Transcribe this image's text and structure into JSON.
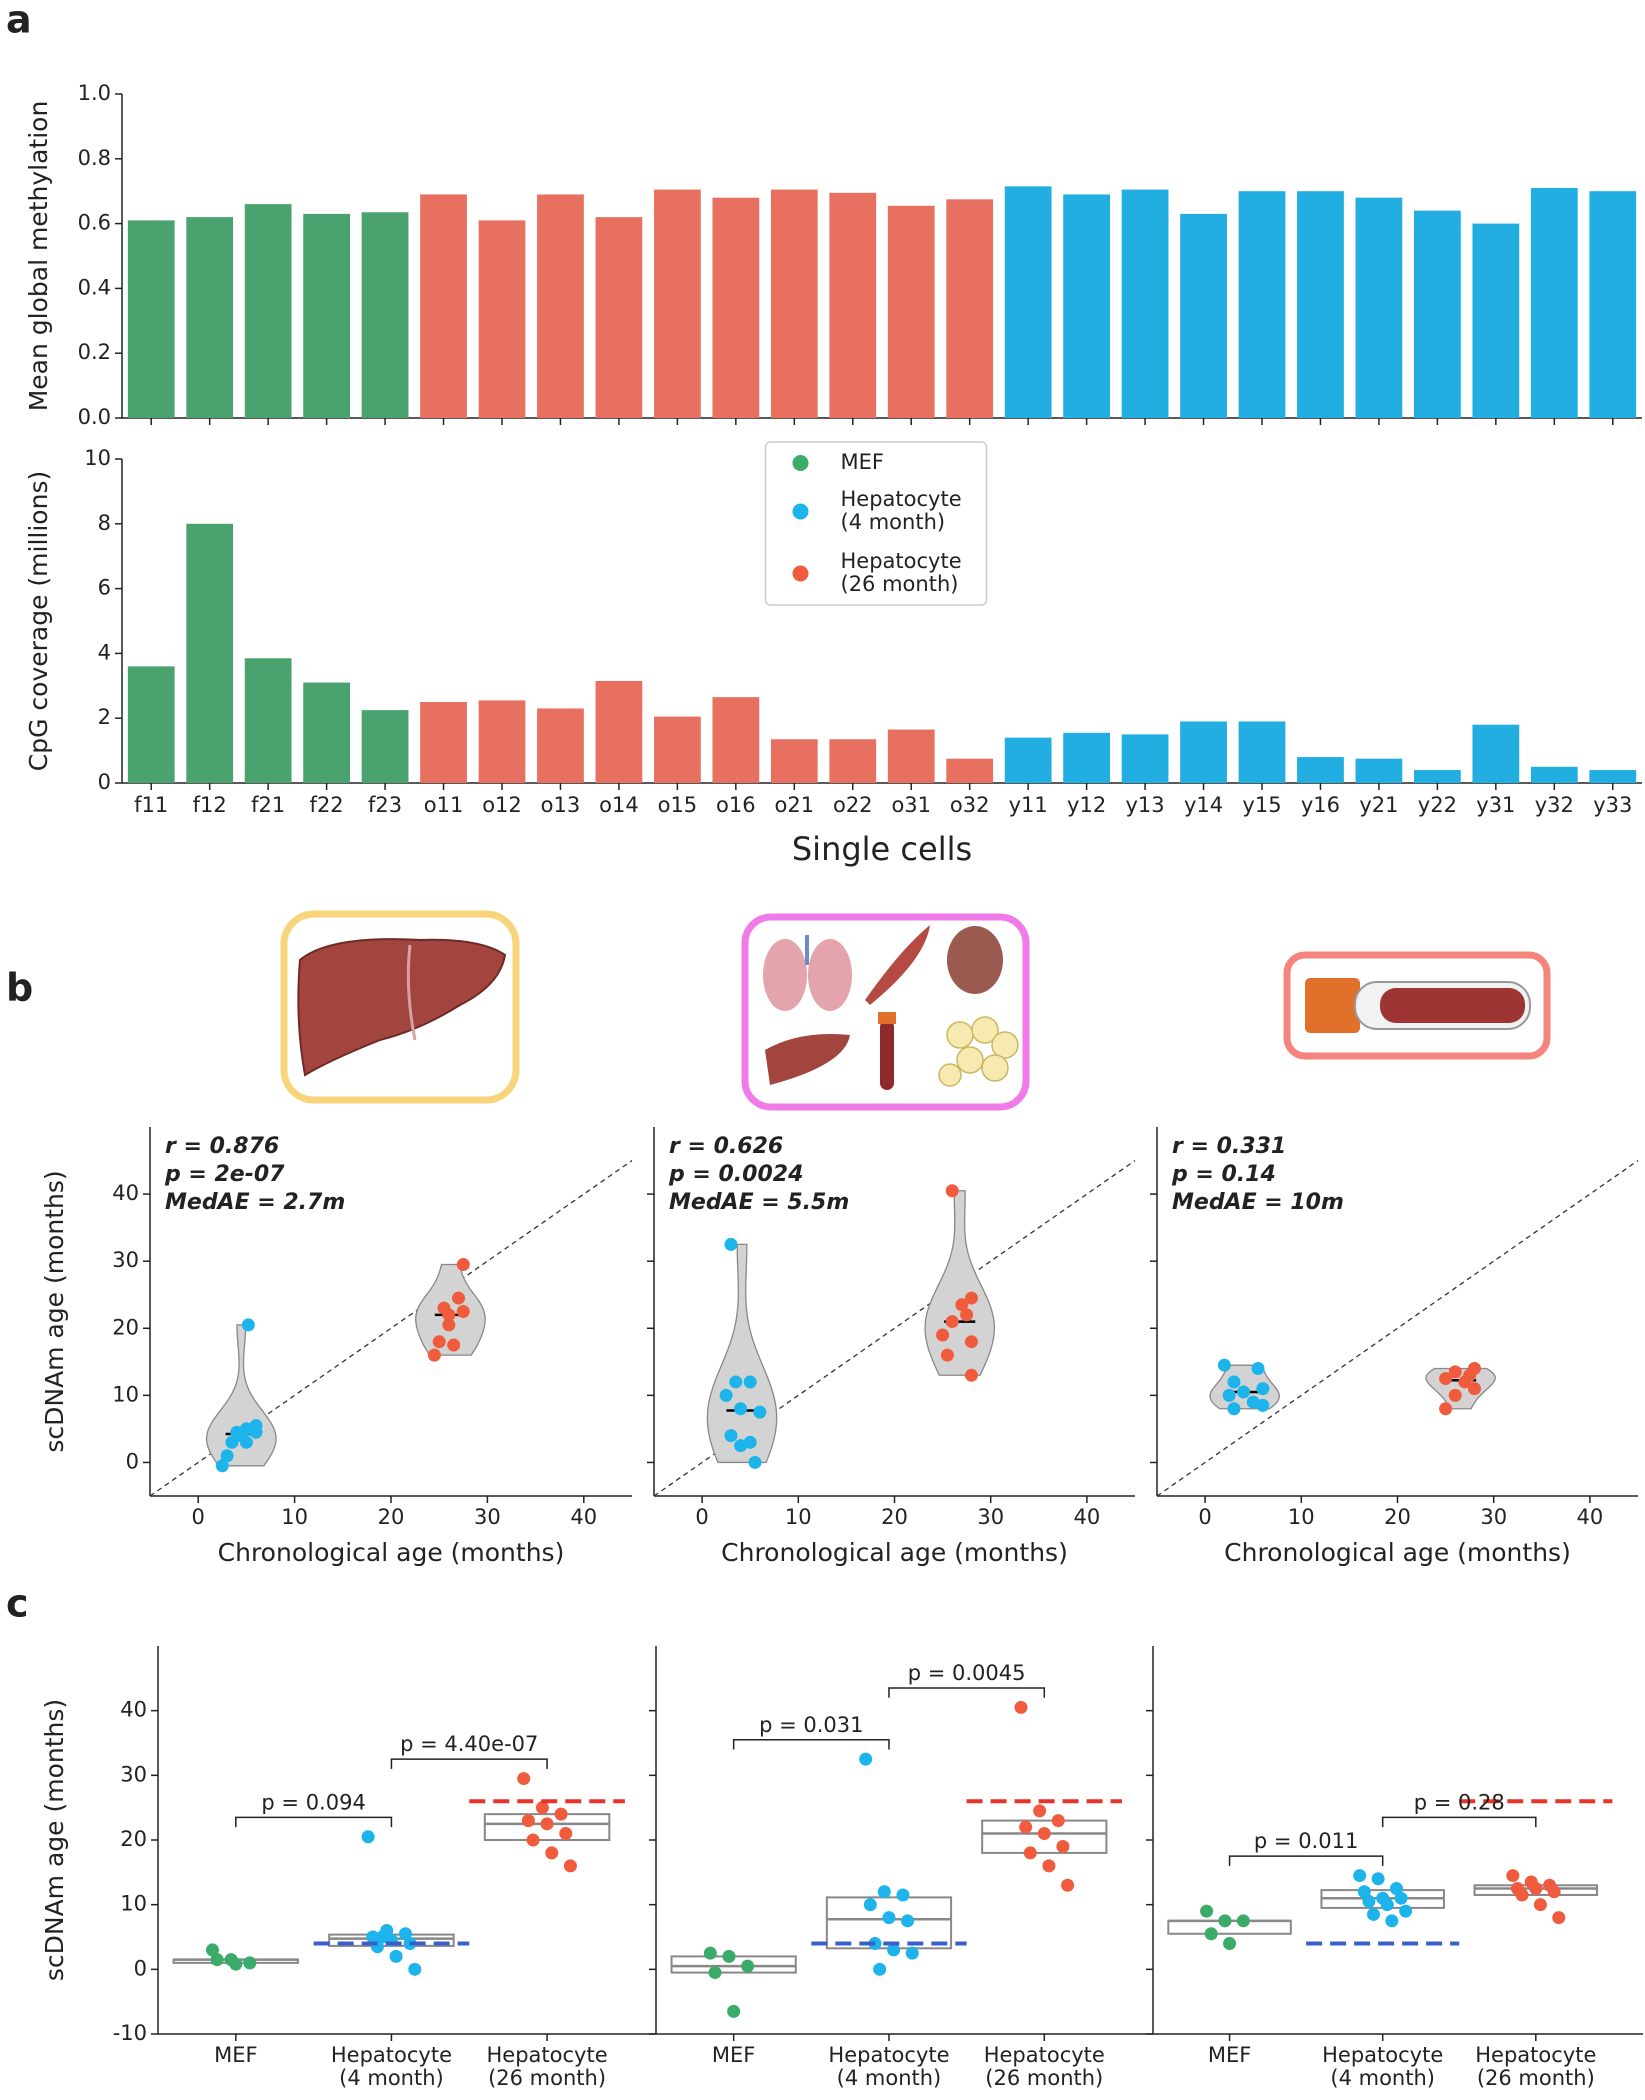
{
  "panel_labels": [
    "a",
    "b",
    "c"
  ],
  "chart_data": [
    {
      "type": "bar",
      "ylabel": "Mean global methylation",
      "values": [
        0.61,
        0.62,
        0.66,
        0.63,
        0.635,
        0.69,
        0.61,
        0.69,
        0.62,
        0.705,
        0.68,
        0.705,
        0.695,
        0.655,
        0.675,
        0.715,
        0.69,
        0.705,
        0.63,
        0.7,
        0.7,
        0.68,
        0.64,
        0.6,
        0.71,
        0.7
      ],
      "colors": [
        "#4aa36e",
        "#4aa36e",
        "#4aa36e",
        "#4aa36e",
        "#4aa36e",
        "#e87060",
        "#e87060",
        "#e87060",
        "#e87060",
        "#e87060",
        "#e87060",
        "#e87060",
        "#e87060",
        "#e87060",
        "#e87060",
        "#22aee0",
        "#22aee0",
        "#22aee0",
        "#22aee0",
        "#22aee0",
        "#22aee0",
        "#22aee0",
        "#22aee0",
        "#22aee0",
        "#22aee0",
        "#22aee0"
      ],
      "ylim": [
        0,
        1
      ],
      "yticks": [
        {
          "value": 0,
          "label": "0.0"
        },
        0.2,
        0.4,
        0.6,
        0.8,
        {
          "value": 1,
          "label": "1.0"
        }
      ]
    },
    {
      "type": "bar",
      "ylabel": "CpG coverage (millions)",
      "xlabel": "Single cells",
      "categories": [
        "f11",
        "f12",
        "f21",
        "f22",
        "f23",
        "o11",
        "o12",
        "o13",
        "o14",
        "o15",
        "o16",
        "o21",
        "o22",
        "o31",
        "o32",
        "y11",
        "y12",
        "y13",
        "y14",
        "y15",
        "y16",
        "y21",
        "y22",
        "y31",
        "y32",
        "y33"
      ],
      "values": [
        3.6,
        8.0,
        3.85,
        3.1,
        2.25,
        2.5,
        2.55,
        2.3,
        3.15,
        2.05,
        2.65,
        1.35,
        1.35,
        1.65,
        0.75,
        1.4,
        1.55,
        1.5,
        1.9,
        1.9,
        0.8,
        0.75,
        0.4,
        1.8,
        0.5,
        0.4
      ],
      "colors": [
        "#4aa36e",
        "#4aa36e",
        "#4aa36e",
        "#4aa36e",
        "#4aa36e",
        "#e87060",
        "#e87060",
        "#e87060",
        "#e87060",
        "#e87060",
        "#e87060",
        "#e87060",
        "#e87060",
        "#e87060",
        "#e87060",
        "#22aee0",
        "#22aee0",
        "#22aee0",
        "#22aee0",
        "#22aee0",
        "#22aee0",
        "#22aee0",
        "#22aee0",
        "#22aee0",
        "#22aee0",
        "#22aee0"
      ],
      "ylim": [
        0,
        10
      ],
      "yticks": [
        0,
        2,
        4,
        6,
        8,
        10
      ],
      "legend": {
        "location": "upper center",
        "entries": [
          {
            "name": "MEF",
            "color": "#3bab6a"
          },
          {
            "name": "Hepatocyte\n(4 month)",
            "color": "#1db4ec"
          },
          {
            "name": "Hepatocyte\n(26 month)",
            "color": "#f15b3d"
          }
        ]
      }
    },
    {
      "type": "violin",
      "ylabel": "scDNAm age (months)",
      "xlabel": "Chronological age (months)",
      "annotations": [
        "r = 0.876",
        "p = 2e-07",
        "MedAE = 2.7m"
      ],
      "identity_line": true,
      "xlim": [
        -5,
        45
      ],
      "xticks": [
        0,
        10,
        20,
        30,
        40
      ],
      "ylim": [
        -5,
        50
      ],
      "yticks": [
        0,
        10,
        20,
        30,
        40
      ],
      "series": [
        {
          "color": "#1db4ec",
          "x": [
            5.2,
            4,
            5,
            6,
            3.5,
            3,
            2.5,
            4.5,
            6,
            5
          ],
          "y": [
            20.5,
            4.5,
            5,
            5.5,
            3,
            1,
            -0.5,
            4,
            4.5,
            3
          ]
        },
        {
          "color": "#f15b3d",
          "x": [
            27.5,
            27,
            26,
            25.5,
            27.5,
            26,
            25,
            26.5,
            24.5
          ],
          "y": [
            29.5,
            24.5,
            22,
            23,
            22.5,
            20.5,
            18,
            17.5,
            16
          ]
        }
      ]
    },
    {
      "type": "violin",
      "xlabel": "Chronological age (months)",
      "sharey": true,
      "annotations": [
        "r = 0.626",
        "p = 0.0024",
        "MedAE = 5.5m"
      ],
      "identity_line": true,
      "xlim": [
        -5,
        45
      ],
      "xticks": [
        0,
        10,
        20,
        30,
        40
      ],
      "ylim": [
        -5,
        50
      ],
      "yticks": [
        0,
        10,
        20,
        30,
        40
      ],
      "series": [
        {
          "color": "#1db4ec",
          "x": [
            3,
            3.5,
            5,
            2.5,
            4,
            6,
            3,
            5,
            4,
            5.5
          ],
          "y": [
            32.5,
            12,
            12,
            10,
            8,
            7.5,
            4,
            3,
            2.5,
            0
          ]
        },
        {
          "color": "#f15b3d",
          "x": [
            26,
            28,
            27,
            27.5,
            26,
            25,
            28,
            25.5,
            28
          ],
          "y": [
            40.5,
            24.5,
            23.5,
            22,
            21,
            19,
            18,
            16,
            13
          ]
        }
      ]
    },
    {
      "type": "violin",
      "xlabel": "Chronological age (months)",
      "sharey": true,
      "annotations": [
        "r = 0.331",
        "p = 0.14",
        "MedAE = 10m"
      ],
      "identity_line": true,
      "xlim": [
        -5,
        45
      ],
      "xticks": [
        0,
        10,
        20,
        30,
        40
      ],
      "ylim": [
        -5,
        50
      ],
      "yticks": [
        0,
        10,
        20,
        30,
        40
      ],
      "series": [
        {
          "color": "#1db4ec",
          "x": [
            2,
            5.5,
            3,
            6,
            4,
            2.5,
            5,
            3,
            6
          ],
          "y": [
            14.5,
            14,
            12,
            11,
            10.5,
            10,
            9,
            8,
            8.5
          ]
        },
        {
          "color": "#f15b3d",
          "x": [
            28,
            26,
            27.5,
            25,
            27,
            28,
            26,
            25
          ],
          "y": [
            14,
            13.5,
            13,
            12.5,
            12,
            11,
            10,
            8
          ]
        }
      ]
    },
    {
      "type": "box_strip",
      "ylabel": "scDNAm age (months)",
      "categories": [
        "MEF",
        "Hepatocyte\n(4 month)",
        "Hepatocyte\n(26 month)"
      ],
      "annotations": [
        "p = 0.094",
        "p = 4.40e-07"
      ],
      "ylim": [
        -10,
        50
      ],
      "yticks": [
        -10,
        0,
        10,
        20,
        30,
        40
      ],
      "series": [
        {
          "color": "#3bab6a",
          "values": [
            3,
            1.5,
            1,
            1.5,
            0.8
          ]
        },
        {
          "color": "#1db4ec",
          "values": [
            20.5,
            6,
            5.5,
            5,
            4.5,
            4,
            3.5,
            2,
            0,
            5
          ],
          "reference": 4,
          "reference_color": "#3b5fc9"
        },
        {
          "color": "#f15b3d",
          "values": [
            29.5,
            25,
            24,
            23,
            22.5,
            21,
            20,
            18,
            16
          ],
          "reference": 26,
          "reference_color": "#e8322a"
        }
      ]
    },
    {
      "type": "box_strip",
      "sharey": true,
      "categories": [
        "MEF",
        "Hepatocyte\n(4 month)",
        "Hepatocyte\n(26 month)"
      ],
      "annotations": [
        "p = 0.031",
        "p = 0.0045"
      ],
      "ylim": [
        -10,
        50
      ],
      "yticks": [
        -10,
        0,
        10,
        20,
        30,
        40
      ],
      "series": [
        {
          "color": "#3bab6a",
          "values": [
            2.5,
            2,
            0.5,
            -0.5,
            -6.5
          ]
        },
        {
          "color": "#1db4ec",
          "values": [
            32.5,
            12,
            11.5,
            10,
            8,
            7.5,
            4,
            3,
            2.5,
            0
          ],
          "reference": 4,
          "reference_color": "#3b5fc9"
        },
        {
          "color": "#f15b3d",
          "values": [
            40.5,
            24.5,
            23,
            22,
            21,
            19,
            18,
            16,
            13
          ],
          "reference": 26,
          "reference_color": "#e8322a"
        }
      ]
    },
    {
      "type": "box_strip",
      "sharey": true,
      "categories": [
        "MEF",
        "Hepatocyte\n(4 month)",
        "Hepatocyte\n(26 month)"
      ],
      "annotations": [
        "p = 0.011",
        "p = 0.28"
      ],
      "ylim": [
        -10,
        50
      ],
      "yticks": [
        -10,
        0,
        10,
        20,
        30,
        40
      ],
      "series": [
        {
          "color": "#3bab6a",
          "values": [
            9,
            7.5,
            7.5,
            5.5,
            4
          ]
        },
        {
          "color": "#1db4ec",
          "values": [
            14.5,
            14,
            12.5,
            12,
            11,
            11,
            10.5,
            10,
            9,
            8.5,
            7.5
          ],
          "reference": 4,
          "reference_color": "#3b5fc9"
        },
        {
          "color": "#f15b3d",
          "values": [
            14.5,
            13.5,
            13,
            12.5,
            12.5,
            12,
            11.5,
            10,
            8
          ],
          "reference": 26,
          "reference_color": "#e8322a"
        }
      ]
    }
  ]
}
